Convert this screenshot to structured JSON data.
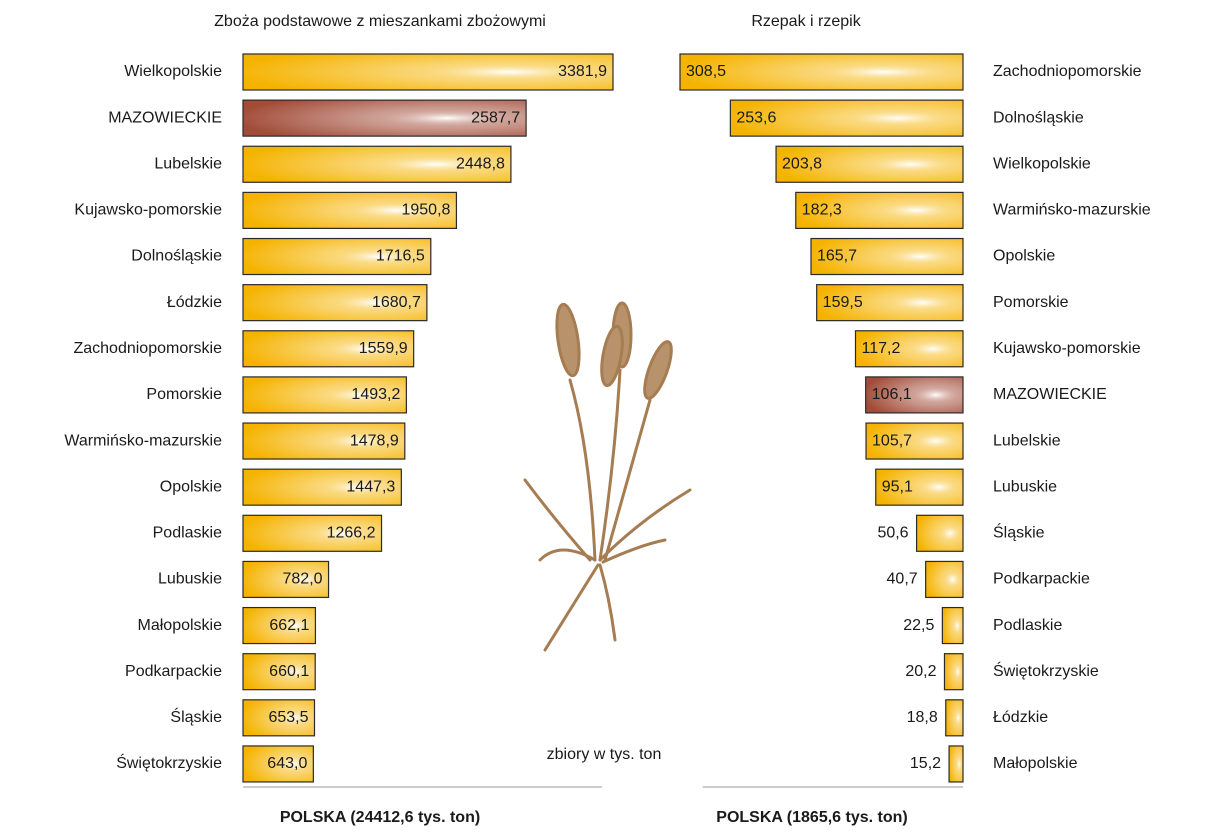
{
  "chart_data": [
    {
      "type": "hbar-right",
      "title": "Zboża podstawowe  z mieszankami zbożowymi",
      "categories": [
        "Wielkopolskie",
        "MAZOWIECKIE",
        "Lubelskie",
        "Kujawsko-pomorskie",
        "Dolnośląskie",
        "Łódzkie",
        "Zachodniopomorskie",
        "Pomorskie",
        "Warmińsko-mazurskie",
        "Opolskie",
        "Podlaskie",
        "Lubuskie",
        "Małopolskie",
        "Podkarpackie",
        "Śląskie",
        "Świętokrzyskie"
      ],
      "values": [
        3381.9,
        2587.7,
        2448.8,
        1950.8,
        1716.5,
        1680.7,
        1559.9,
        1493.2,
        1478.9,
        1447.3,
        1266.2,
        782.0,
        662.1,
        660.1,
        653.5,
        643.0
      ],
      "value_labels": [
        "3381,9",
        "2587,7",
        "2448,8",
        "1950,8",
        "1716,5",
        "1680,7",
        "1559,9",
        "1493,2",
        "1478,9",
        "1447,3",
        "1266,2",
        "782,0",
        "662,1",
        "660,1",
        "653,5",
        "643,0"
      ],
      "colors": [
        "#f5b300",
        "#a24c38",
        "#f5b300",
        "#f5b300",
        "#f5b300",
        "#f5b300",
        "#f5b300",
        "#f5b300",
        "#f5b300",
        "#f5b300",
        "#f5b300",
        "#f5b300",
        "#f5b300",
        "#f5b300",
        "#f5b300",
        "#f5b300"
      ],
      "note": "POLSKA (24412,6 tys. ton)"
    },
    {
      "type": "hbar-left",
      "title": "Rzepak i rzepik",
      "categories": [
        "Zachodniopomorskie",
        "Dolnośląskie",
        "Wielkopolskie",
        "Warmińsko-mazurskie",
        "Opolskie",
        "Pomorskie",
        "Kujawsko-pomorskie",
        "MAZOWIECKIE",
        "Lubelskie",
        "Lubuskie",
        "Śląskie",
        "Podkarpackie",
        "Podlaskie",
        "Świętokrzyskie",
        "Łódzkie",
        "Małopolskie"
      ],
      "values": [
        308.5,
        253.6,
        203.8,
        182.3,
        165.7,
        159.5,
        117.2,
        106.1,
        105.7,
        95.1,
        50.6,
        40.7,
        22.5,
        20.2,
        18.8,
        15.2
      ],
      "value_labels": [
        "308,5",
        "253,6",
        "203,8",
        "182,3",
        "165,7",
        "159,5",
        "117,2",
        "106,1",
        "105,7",
        "95,1",
        "50,6",
        "40,7",
        "22,5",
        "20,2",
        "18,8",
        "15,2"
      ],
      "colors": [
        "#f5b300",
        "#f5b300",
        "#f5b300",
        "#f5b300",
        "#f5b300",
        "#f5b300",
        "#f5b300",
        "#a24c38",
        "#f5b300",
        "#f5b300",
        "#f5b300",
        "#f5b300",
        "#f5b300",
        "#f5b300",
        "#f5b300",
        "#f5b300"
      ],
      "note": "POLSKA (1865,6 tys. ton)"
    }
  ],
  "unit_note": "zbiory w tys. ton"
}
